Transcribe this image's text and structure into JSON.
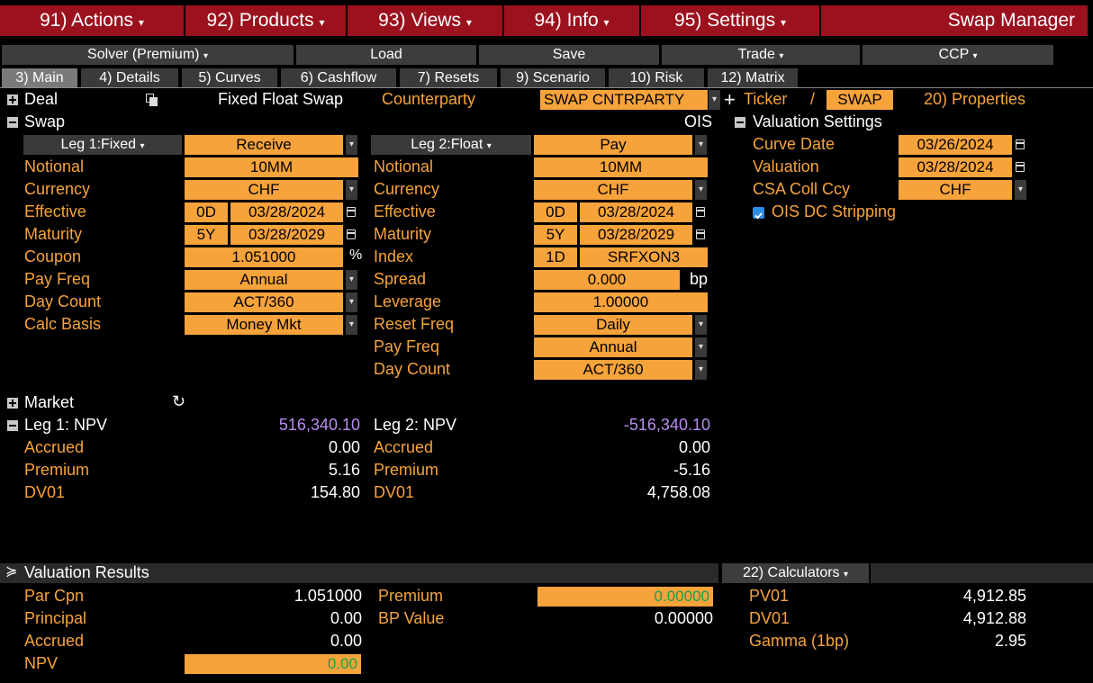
{
  "menu": {
    "actions": "91) Actions",
    "products": "92) Products",
    "views": "93) Views",
    "info": "94) Info",
    "settings": "95) Settings",
    "app_title": "Swap Manager"
  },
  "toolbar": {
    "solver": "Solver (Premium)",
    "load": "Load",
    "save": "Save",
    "trade": "Trade",
    "ccp": "CCP"
  },
  "tabs": {
    "main": "3) Main",
    "details": "4) Details",
    "curves": "5) Curves",
    "cashflow": "6) Cashflow",
    "resets": "7) Resets",
    "scenario": "9) Scenario",
    "risk": "10) Risk",
    "matrix": "12) Matrix"
  },
  "deal": {
    "label": "Deal",
    "type": "Fixed Float Swap",
    "counterparty_label": "Counterparty",
    "counterparty_value": "SWAP CNTRPARTY",
    "ticker_label": "Ticker",
    "slash": "/",
    "ticker_value": "SWAP",
    "properties": "20) Properties"
  },
  "swap": {
    "label": "Swap",
    "tag": "OIS"
  },
  "leg1": {
    "header": "Leg 1:Fixed",
    "direction": "Receive",
    "notional_label": "Notional",
    "notional": "10MM",
    "currency_label": "Currency",
    "currency": "CHF",
    "effective_label": "Effective",
    "effective_tenor": "0D",
    "effective_date": "03/28/2024",
    "maturity_label": "Maturity",
    "maturity_tenor": "5Y",
    "maturity_date": "03/28/2029",
    "coupon_label": "Coupon",
    "coupon": "1.051000",
    "coupon_unit": "%",
    "payfreq_label": "Pay Freq",
    "payfreq": "Annual",
    "daycount_label": "Day Count",
    "daycount": "ACT/360",
    "calcbasis_label": "Calc Basis",
    "calcbasis": "Money Mkt"
  },
  "leg2": {
    "header": "Leg 2:Float",
    "direction": "Pay",
    "notional_label": "Notional",
    "notional": "10MM",
    "currency_label": "Currency",
    "currency": "CHF",
    "effective_label": "Effective",
    "effective_tenor": "0D",
    "effective_date": "03/28/2024",
    "maturity_label": "Maturity",
    "maturity_tenor": "5Y",
    "maturity_date": "03/28/2029",
    "index_label": "Index",
    "index_tenor": "1D",
    "index": "SRFXON3",
    "spread_label": "Spread",
    "spread": "0.000",
    "spread_unit": "bp",
    "leverage_label": "Leverage",
    "leverage": "1.00000",
    "resetfreq_label": "Reset Freq",
    "resetfreq": "Daily",
    "payfreq_label": "Pay Freq",
    "payfreq": "Annual",
    "daycount_label": "Day Count",
    "daycount": "ACT/360"
  },
  "valuation_settings": {
    "label": "Valuation Settings",
    "curve_date_label": "Curve Date",
    "curve_date": "03/26/2024",
    "valuation_label": "Valuation",
    "valuation": "03/28/2024",
    "csa_label": "CSA Coll Ccy",
    "csa": "CHF",
    "ois_label": "OIS DC Stripping",
    "ois_checked": true
  },
  "market": {
    "label": "Market",
    "leg1_npv_label": "Leg 1: NPV",
    "leg1_npv": "516,340.10",
    "leg1_accrued_label": "Accrued",
    "leg1_accrued": "0.00",
    "leg1_premium_label": "Premium",
    "leg1_premium": "5.16",
    "leg1_dv01_label": "DV01",
    "leg1_dv01": "154.80",
    "leg2_npv_label": "Leg 2: NPV",
    "leg2_npv": "-516,340.10",
    "leg2_accrued_label": "Accrued",
    "leg2_accrued": "0.00",
    "leg2_premium_label": "Premium",
    "leg2_premium": "-5.16",
    "leg2_dv01_label": "DV01",
    "leg2_dv01": "4,758.08"
  },
  "results": {
    "label": "Valuation Results",
    "calculators": "22) Calculators",
    "parcpn_label": "Par Cpn",
    "parcpn": "1.051000",
    "principal_label": "Principal",
    "principal": "0.00",
    "accrued_label": "Accrued",
    "accrued": "0.00",
    "npv_label": "NPV",
    "npv": "0.00",
    "premium_label": "Premium",
    "premium": "0.00000",
    "bpvalue_label": "BP Value",
    "bpvalue": "0.00000",
    "pv01_label": "PV01",
    "pv01": "4,912.85",
    "dv01_label": "DV01",
    "dv01": "4,912.88",
    "gamma_label": "Gamma (1bp)",
    "gamma": "2.95"
  },
  "colors": {
    "menu_red": "#9b111e",
    "field_orange": "#f7a33b",
    "label_orange": "#f7a33b",
    "npv_purple": "#b98cf0",
    "result_green": "#1f9e4a"
  }
}
